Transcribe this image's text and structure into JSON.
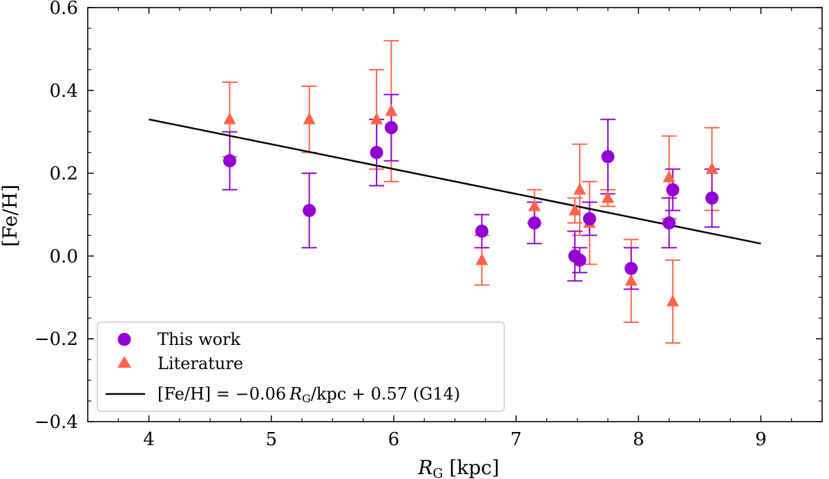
{
  "chart_data": {
    "type": "scatter",
    "title": "",
    "xlabel": "R_G [kpc]",
    "xlabel_main": "R",
    "xlabel_sub": "G",
    "xlabel_unit": " [kpc]",
    "ylabel": "[Fe/H]",
    "xlim": [
      3.5,
      9.5
    ],
    "ylim": [
      -0.4,
      0.6
    ],
    "xticks": [
      4,
      5,
      6,
      7,
      8,
      9
    ],
    "xtick_labels": [
      "4",
      "5",
      "6",
      "7",
      "8",
      "9"
    ],
    "yticks": [
      -0.4,
      -0.2,
      0.0,
      0.2,
      0.4,
      0.6
    ],
    "ytick_labels": [
      "−0.4",
      "−0.2",
      "0.0",
      "0.2",
      "0.4",
      "0.6"
    ],
    "grid": false,
    "legend_position": "bottom-left",
    "series": [
      {
        "name": "This work",
        "marker": "circle",
        "color": "#9400D3",
        "points": [
          {
            "x": 4.66,
            "y": 0.23,
            "err": 0.07
          },
          {
            "x": 5.31,
            "y": 0.11,
            "err": 0.09
          },
          {
            "x": 5.86,
            "y": 0.25,
            "err": 0.08
          },
          {
            "x": 5.98,
            "y": 0.31,
            "err": 0.08
          },
          {
            "x": 6.72,
            "y": 0.06,
            "err": 0.04
          },
          {
            "x": 7.15,
            "y": 0.08,
            "err": 0.05
          },
          {
            "x": 7.48,
            "y": 0.0,
            "err": 0.06
          },
          {
            "x": 7.52,
            "y": -0.01,
            "err": 0.03
          },
          {
            "x": 7.6,
            "y": 0.09,
            "err": 0.04
          },
          {
            "x": 7.75,
            "y": 0.24,
            "err": 0.09
          },
          {
            "x": 7.94,
            "y": -0.03,
            "err": 0.05
          },
          {
            "x": 8.25,
            "y": 0.08,
            "err": 0.06
          },
          {
            "x": 8.28,
            "y": 0.16,
            "err": 0.05
          },
          {
            "x": 8.6,
            "y": 0.14,
            "err": 0.07
          }
        ]
      },
      {
        "name": "Literature",
        "marker": "triangle",
        "color": "#FF6347",
        "points": [
          {
            "x": 4.66,
            "y": 0.33,
            "err": 0.09
          },
          {
            "x": 5.31,
            "y": 0.33,
            "err": 0.08
          },
          {
            "x": 5.86,
            "y": 0.33,
            "err": 0.12
          },
          {
            "x": 5.98,
            "y": 0.35,
            "err": 0.17
          },
          {
            "x": 6.72,
            "y": -0.01,
            "err": 0.06
          },
          {
            "x": 7.15,
            "y": 0.12,
            "err": 0.04
          },
          {
            "x": 7.48,
            "y": 0.11,
            "err": 0.03
          },
          {
            "x": 7.52,
            "y": 0.16,
            "err": 0.11
          },
          {
            "x": 7.6,
            "y": 0.08,
            "err": 0.1
          },
          {
            "x": 7.75,
            "y": 0.14,
            "err": 0.02
          },
          {
            "x": 7.94,
            "y": -0.06,
            "err": 0.1
          },
          {
            "x": 8.25,
            "y": 0.19,
            "err": 0.1
          },
          {
            "x": 8.28,
            "y": -0.11,
            "err": 0.1
          },
          {
            "x": 8.6,
            "y": 0.21,
            "err": 0.1
          }
        ]
      }
    ],
    "fit_line": {
      "name": "[Fe/H] = −0.06 R_G/kpc + 0.57 (G14)",
      "color": "#000000",
      "slope": -0.06,
      "intercept": 0.57,
      "x_range": [
        4,
        9
      ]
    },
    "legend": [
      {
        "label": "This work",
        "marker": "circle",
        "color": "#9400D3"
      },
      {
        "label": "Literature",
        "marker": "triangle",
        "color": "#FF6347"
      },
      {
        "label": "[Fe/H] = −0.06 R_G/kpc + 0.57 (G14)",
        "marker": "line",
        "color": "#000000",
        "label_pre": "[Fe/H] = −0.06 ",
        "label_var": "R",
        "label_sub": "G",
        "label_post": "/kpc + 0.57 (G14)"
      }
    ]
  }
}
